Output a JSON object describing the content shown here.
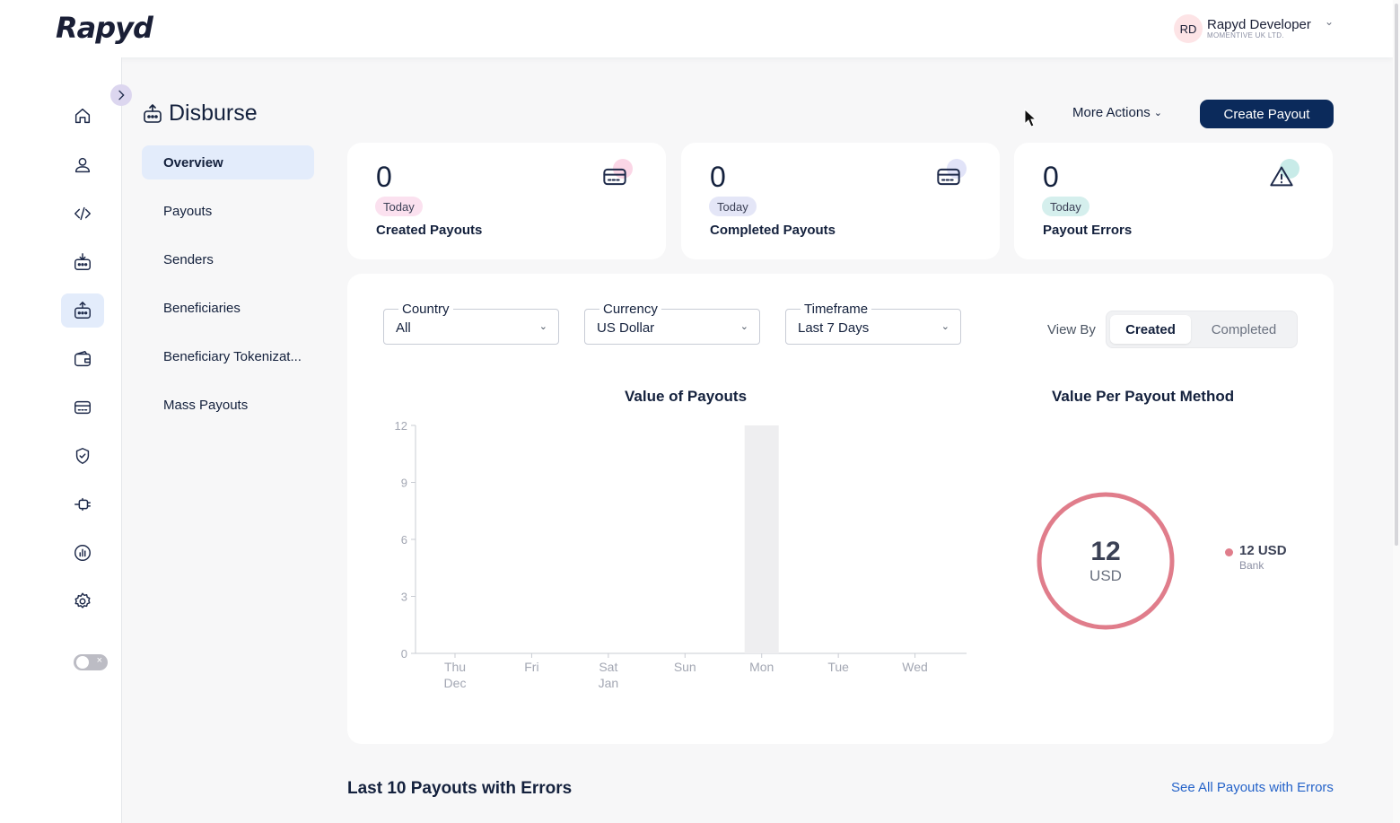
{
  "header": {
    "logo": "Rapyd",
    "user": {
      "initials": "RD",
      "name": "Rapyd Developer",
      "company": "MOMENTIVE UK LTD."
    }
  },
  "rail": {
    "icons": [
      "home-icon",
      "user-icon",
      "code-icon",
      "collect-icon",
      "disburse-icon",
      "wallet-icon",
      "card-icon",
      "shield-check-icon",
      "plug-icon",
      "report-icon",
      "settings-icon"
    ],
    "active": "disburse-icon"
  },
  "page": {
    "title": "Disburse",
    "subnav": [
      "Overview",
      "Payouts",
      "Senders",
      "Beneficiaries",
      "Beneficiary Tokenizat...",
      "Mass Payouts"
    ],
    "active_subnav": "Overview"
  },
  "actions": {
    "more": "More Actions",
    "create": "Create Payout"
  },
  "stats": [
    {
      "value": "0",
      "badge": "Today",
      "label": "Created Payouts",
      "badge_color": "#fbe1ef",
      "dot_color": "#fbd6e6"
    },
    {
      "value": "0",
      "badge": "Today",
      "label": "Completed Payouts",
      "badge_color": "#e4e6f7",
      "dot_color": "#e1e3f8"
    },
    {
      "value": "0",
      "badge": "Today",
      "label": "Payout Errors",
      "badge_color": "#d5efed",
      "dot_color": "#c8ebe8"
    }
  ],
  "filters": {
    "country": {
      "label": "Country",
      "value": "All"
    },
    "currency": {
      "label": "Currency",
      "value": "US Dollar"
    },
    "timeframe": {
      "label": "Timeframe",
      "value": "Last 7 Days"
    }
  },
  "view_by": {
    "label": "View By",
    "options": [
      "Created",
      "Completed"
    ],
    "selected": "Created"
  },
  "chart_data": [
    {
      "type": "bar",
      "title": "Value of Payouts",
      "categories": [
        "Thu",
        "Fri",
        "Sat",
        "Sun",
        "Mon",
        "Tue",
        "Wed"
      ],
      "category_sublabels": [
        "Dec",
        "",
        "Jan",
        "",
        "",
        "",
        ""
      ],
      "values": [
        0,
        0,
        0,
        0,
        12,
        0,
        0
      ],
      "ylim": [
        0,
        12
      ],
      "yticks": [
        0,
        3,
        6,
        9,
        12
      ],
      "xlabel": "",
      "ylabel": "",
      "bar_color": "#eeeef0"
    },
    {
      "type": "pie",
      "title": "Value Per Payout Method",
      "labels": [
        "Bank"
      ],
      "values": [
        12
      ],
      "center_value": "12",
      "center_unit": "USD",
      "legend": [
        {
          "value": "12 USD",
          "label": "Bank",
          "color": "#e07d8b"
        }
      ]
    }
  ],
  "errors": {
    "title": "Last 10 Payouts with Errors",
    "link": "See All Payouts with Errors"
  }
}
